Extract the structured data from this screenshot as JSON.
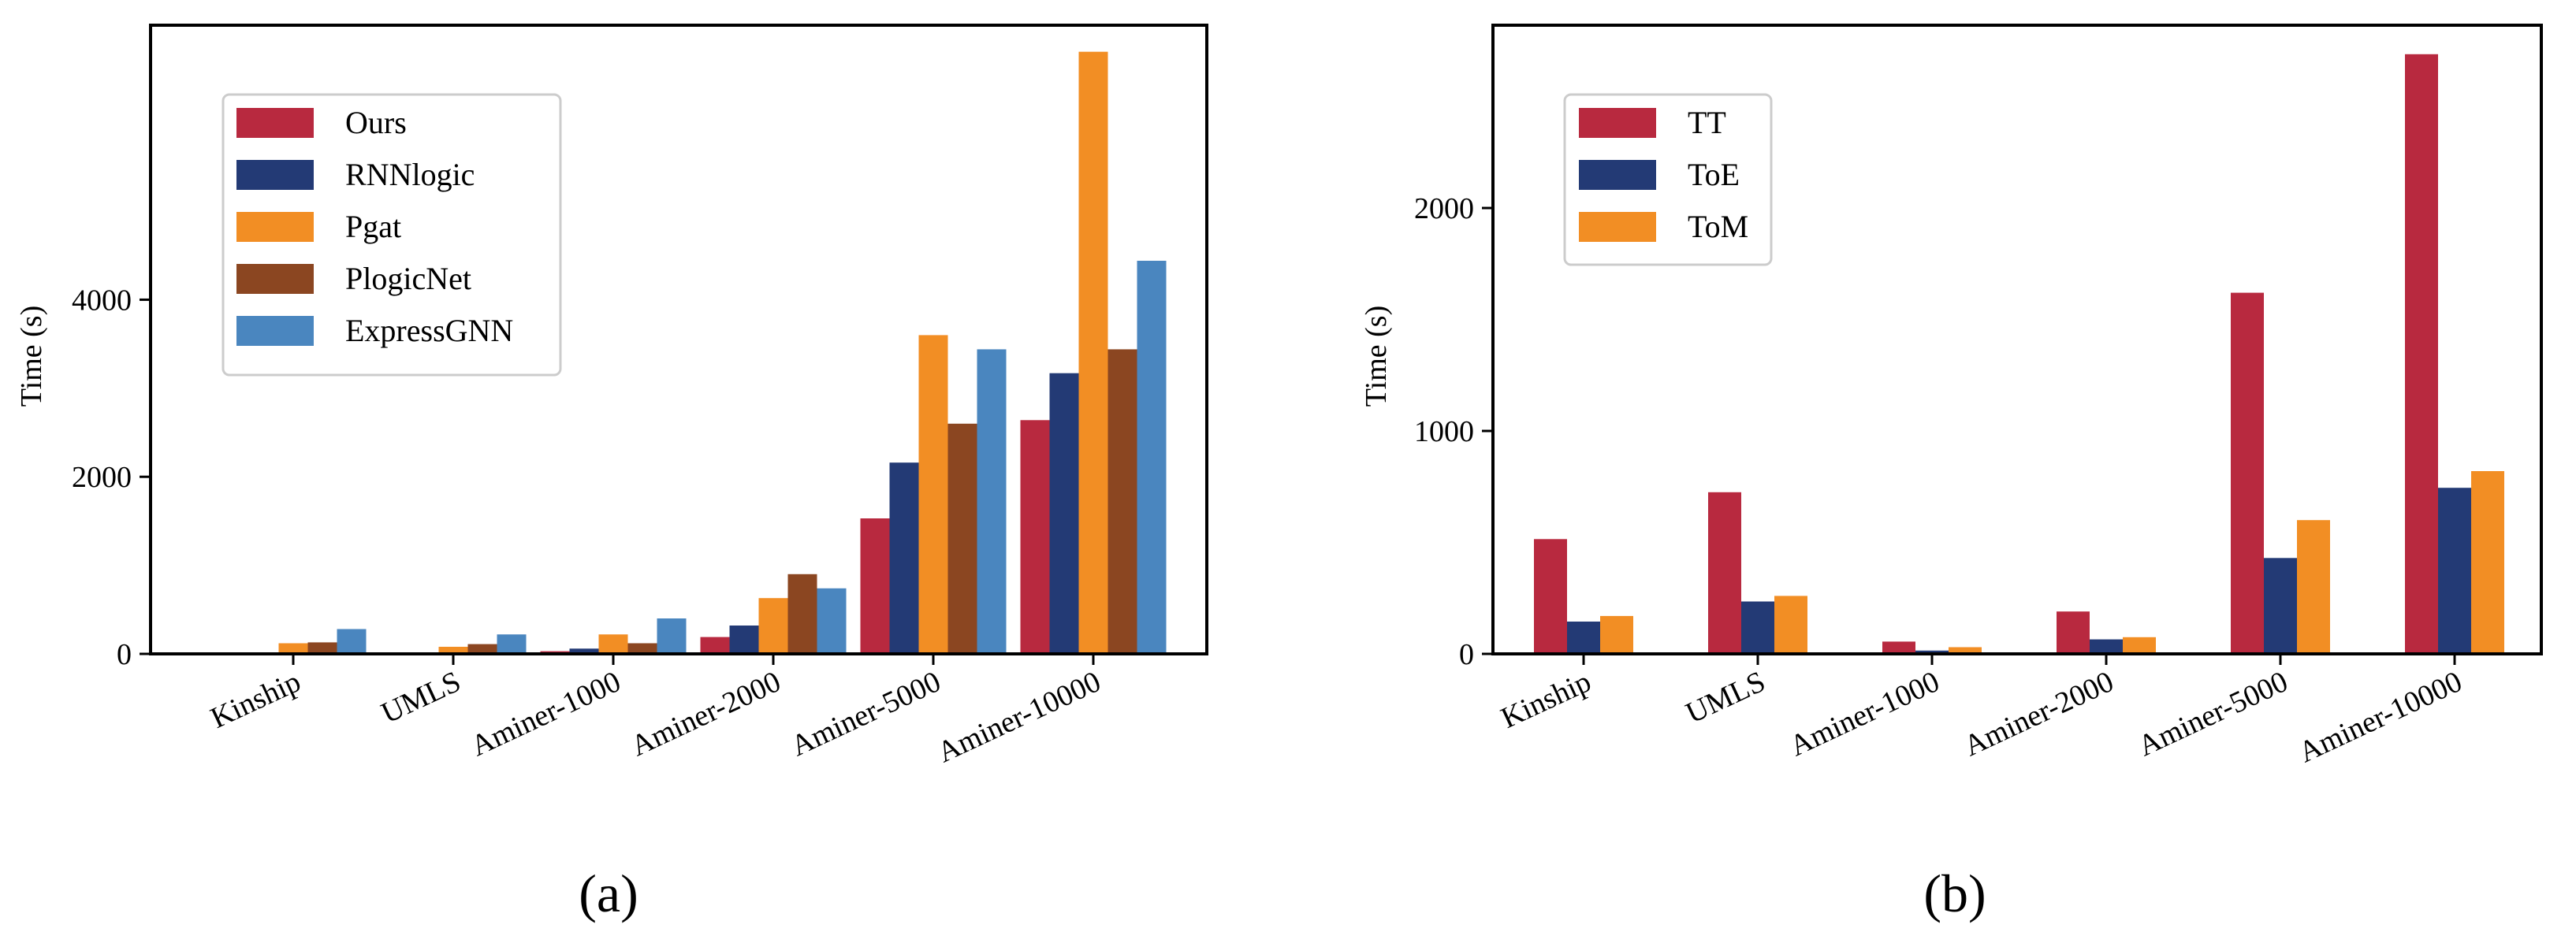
{
  "chart_data": [
    {
      "type": "bar",
      "panel": "a",
      "caption": "(a)",
      "title": "",
      "xlabel": "",
      "ylabel": "Time (s)",
      "ylim": [
        0,
        7100
      ],
      "yticks": [
        0,
        2000,
        4000
      ],
      "legend_position": "upper-left",
      "categories": [
        "Kinship",
        "UMLS",
        "Aminer-1000",
        "Aminer-2000",
        "Aminer-5000",
        "Aminer-10000"
      ],
      "series": [
        {
          "name": "Ours",
          "color": "#b8293f",
          "values": [
            5,
            5,
            30,
            190,
            1530,
            2640
          ]
        },
        {
          "name": "RNNlogic",
          "color": "#233a75",
          "values": [
            10,
            10,
            60,
            320,
            2160,
            3170
          ]
        },
        {
          "name": "Pgat",
          "color": "#f28e24",
          "values": [
            120,
            80,
            220,
            630,
            3600,
            6800
          ]
        },
        {
          "name": "PlogicNet",
          "color": "#8b4621",
          "values": [
            130,
            110,
            120,
            900,
            2600,
            3440
          ]
        },
        {
          "name": "ExpressGNN",
          "color": "#4a86bf",
          "values": [
            280,
            220,
            400,
            740,
            3440,
            4440
          ]
        }
      ]
    },
    {
      "type": "bar",
      "panel": "b",
      "caption": "(b)",
      "title": "",
      "xlabel": "",
      "ylabel": "Time (s)",
      "ylim": [
        0,
        2820
      ],
      "yticks": [
        0,
        1000,
        2000
      ],
      "legend_position": "upper-left",
      "categories": [
        "Kinship",
        "UMLS",
        "Aminer-1000",
        "Aminer-2000",
        "Aminer-5000",
        "Aminer-10000"
      ],
      "series": [
        {
          "name": "TT",
          "color": "#b8293f",
          "values": [
            515,
            725,
            55,
            190,
            1620,
            2690
          ]
        },
        {
          "name": "ToE",
          "color": "#233a75",
          "values": [
            145,
            235,
            15,
            65,
            430,
            745
          ]
        },
        {
          "name": "ToM",
          "color": "#f28e24",
          "values": [
            170,
            260,
            30,
            75,
            600,
            820
          ]
        }
      ]
    }
  ]
}
